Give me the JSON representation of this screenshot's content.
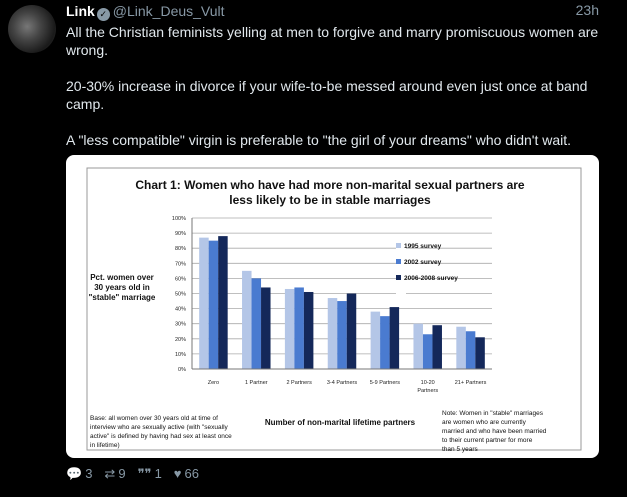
{
  "tweet": {
    "name": "Link",
    "handle": "@Link_Deus_Vult",
    "time": "23h",
    "paragraphs": [
      "All the Christian feminists yelling at men to forgive and marry promiscuous women are wrong.",
      "20-30% increase in divorce if your wife-to-be messed around even just once at band camp.",
      "A \"less compatible\" virgin is preferable to \"the girl of your dreams\" who didn't wait."
    ],
    "actions": {
      "replies": "3",
      "retweets": "9",
      "quotes": "1",
      "likes": "66"
    },
    "icons": {
      "reply": "reply-icon",
      "retweet": "retweet-icon",
      "quote": "quote-icon",
      "like": "heart-icon",
      "verified": "verified-badge-icon"
    }
  },
  "chart_data": {
    "type": "bar",
    "title_line1": "Chart 1: Women who have had more non-marital sexual partners are",
    "title_line2": "less likely to be in stable marriages",
    "ylabel": [
      "Pct. women over",
      "30 years  old in",
      "\"stable\" marriage"
    ],
    "xlabel": "Number of non-marital lifetime partners",
    "ylim": [
      0,
      100
    ],
    "yticks": [
      "0%",
      "10%",
      "20%",
      "30%",
      "40%",
      "50%",
      "60%",
      "70%",
      "80%",
      "90%",
      "100%"
    ],
    "categories": [
      "Zero",
      "1 Partner",
      "2 Partners",
      "3-4 Partners",
      "5-9 Partners",
      "10-20 Partners",
      "21+ Partners"
    ],
    "series": [
      {
        "name": "1995 survey",
        "color": "#b4c6e7",
        "values": [
          87,
          65,
          53,
          47,
          38,
          30,
          28
        ]
      },
      {
        "name": "2002 survey",
        "color": "#4a7bd0",
        "values": [
          85,
          60,
          54,
          45,
          35,
          23,
          25
        ]
      },
      {
        "name": "2006-2008 survey",
        "color": "#14285a",
        "values": [
          88,
          54,
          51,
          50,
          41,
          29,
          21
        ]
      }
    ],
    "grid": true,
    "legend": "right",
    "base_note": [
      "Base: all women over 30 years old at time of",
      "interview who are sexually active (with \"sexually",
      "active\" is defined by having had sex at least once",
      "in lifetime)"
    ],
    "note": [
      "Note: Women in \"stable\" marriages",
      "are women who are currently",
      "married and who have been married",
      "to their current partner for more",
      "than 5 years"
    ]
  }
}
